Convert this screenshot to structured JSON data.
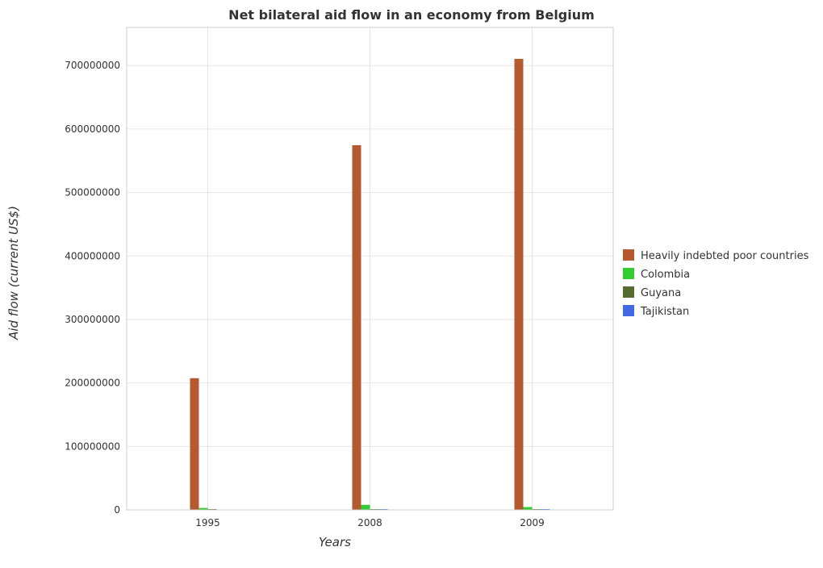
{
  "chart_data": {
    "type": "bar",
    "title": "Net bilateral aid flow in an economy from Belgium",
    "xlabel": "Years",
    "ylabel": "Aid flow (current US$)",
    "categories": [
      "1995",
      "2008",
      "2009"
    ],
    "ylim": [
      0,
      760000000
    ],
    "yticks": [
      0,
      100000000,
      200000000,
      300000000,
      400000000,
      500000000,
      600000000,
      700000000
    ],
    "ytick_labels": [
      "0",
      "100000000",
      "200000000",
      "300000000",
      "400000000",
      "500000000",
      "600000000",
      "700000000"
    ],
    "grid": true,
    "legend_position": "right",
    "series": [
      {
        "name": "Heavily indebted poor countries",
        "color": "#b5592e",
        "values": [
          207500000,
          574500000,
          710500000
        ]
      },
      {
        "name": "Colombia",
        "color": "#32cd32",
        "values": [
          3000000,
          8000000,
          4500000
        ]
      },
      {
        "name": "Guyana",
        "color": "#556b2f",
        "values": [
          100000,
          50000,
          100000
        ]
      },
      {
        "name": "Tajikistan",
        "color": "#4169e1",
        "values": [
          0,
          50000,
          50000
        ]
      }
    ]
  }
}
